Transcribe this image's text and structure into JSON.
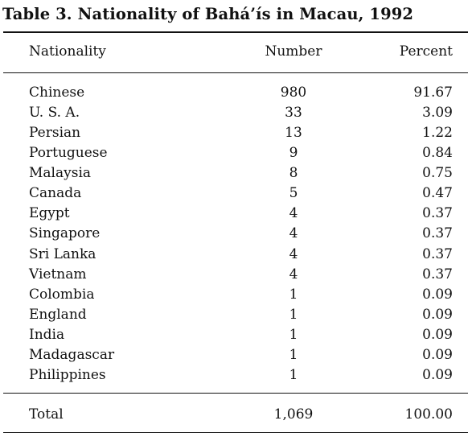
{
  "title": "Table 3. Nationality of Bahá’ís in Macau, 1992",
  "headers": {
    "nationality": "Nationality",
    "number": "Number",
    "percent": "Percent"
  },
  "rows": [
    {
      "nationality": "Chinese",
      "number": "980",
      "percent": "91.67"
    },
    {
      "nationality": "U. S. A.",
      "number": "33",
      "percent": "3.09"
    },
    {
      "nationality": "Persian",
      "number": "13",
      "percent": "1.22"
    },
    {
      "nationality": "Portuguese",
      "number": "9",
      "percent": "0.84"
    },
    {
      "nationality": "Malaysia",
      "number": "8",
      "percent": "0.75"
    },
    {
      "nationality": "Canada",
      "number": "5",
      "percent": "0.47"
    },
    {
      "nationality": "Egypt",
      "number": "4",
      "percent": "0.37"
    },
    {
      "nationality": "Singapore",
      "number": "4",
      "percent": "0.37"
    },
    {
      "nationality": "Sri Lanka",
      "number": "4",
      "percent": "0.37"
    },
    {
      "nationality": "Vietnam",
      "number": "4",
      "percent": "0.37"
    },
    {
      "nationality": "Colombia",
      "number": "1",
      "percent": "0.09"
    },
    {
      "nationality": "England",
      "number": "1",
      "percent": "0.09"
    },
    {
      "nationality": "India",
      "number": "1",
      "percent": "0.09"
    },
    {
      "nationality": "Madagascar",
      "number": "1",
      "percent": "0.09"
    },
    {
      "nationality": "Philippines",
      "number": "1",
      "percent": "0.09"
    }
  ],
  "total": {
    "label": "Total",
    "number": "1,069",
    "percent": "100.00"
  }
}
